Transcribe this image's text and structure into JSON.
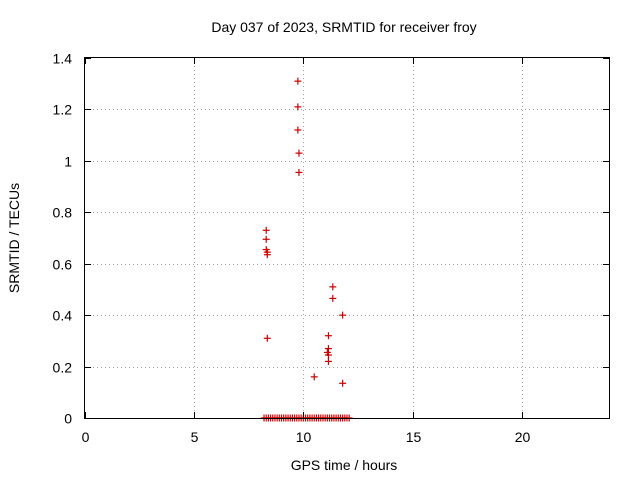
{
  "chart_data": {
    "type": "scatter",
    "title": "Day 037 of 2023, SRMTID for receiver froy",
    "xlabel": "GPS time / hours",
    "ylabel": "SRMTID / TECUs",
    "xlim": [
      0,
      24
    ],
    "ylim": [
      0,
      1.4
    ],
    "x_ticks": [
      0,
      5,
      10,
      15,
      20
    ],
    "x_tick_labels": [
      "0",
      "5",
      "10",
      "15",
      "20"
    ],
    "y_ticks": [
      0,
      0.2,
      0.4,
      0.6,
      0.8,
      1.0,
      1.2,
      1.4
    ],
    "y_tick_labels": [
      "0",
      "0.2",
      "0.4",
      "0.6",
      "0.8",
      "1",
      "1.2",
      "1.4"
    ],
    "grid": true,
    "marker": "+",
    "series": [
      {
        "name": "SRMTID",
        "color": "#cc0000",
        "points": [
          {
            "x": 9.75,
            "y": 1.31
          },
          {
            "x": 9.75,
            "y": 1.21
          },
          {
            "x": 9.75,
            "y": 1.12
          },
          {
            "x": 9.8,
            "y": 1.03
          },
          {
            "x": 9.8,
            "y": 0.955
          },
          {
            "x": 8.3,
            "y": 0.73
          },
          {
            "x": 8.3,
            "y": 0.695
          },
          {
            "x": 8.3,
            "y": 0.655
          },
          {
            "x": 8.35,
            "y": 0.645
          },
          {
            "x": 8.35,
            "y": 0.635
          },
          {
            "x": 8.35,
            "y": 0.31
          },
          {
            "x": 11.35,
            "y": 0.51
          },
          {
            "x": 11.35,
            "y": 0.465
          },
          {
            "x": 11.8,
            "y": 0.4
          },
          {
            "x": 11.15,
            "y": 0.32
          },
          {
            "x": 11.15,
            "y": 0.27
          },
          {
            "x": 11.1,
            "y": 0.255
          },
          {
            "x": 11.15,
            "y": 0.245
          },
          {
            "x": 11.15,
            "y": 0.22
          },
          {
            "x": 10.5,
            "y": 0.16
          },
          {
            "x": 11.8,
            "y": 0.135
          },
          {
            "x": 8.2,
            "y": 0
          },
          {
            "x": 8.3,
            "y": 0
          },
          {
            "x": 8.4,
            "y": 0
          },
          {
            "x": 8.5,
            "y": 0
          },
          {
            "x": 8.6,
            "y": 0
          },
          {
            "x": 8.7,
            "y": 0
          },
          {
            "x": 8.8,
            "y": 0
          },
          {
            "x": 8.9,
            "y": 0
          },
          {
            "x": 9.0,
            "y": 0
          },
          {
            "x": 9.1,
            "y": 0
          },
          {
            "x": 9.2,
            "y": 0
          },
          {
            "x": 9.3,
            "y": 0
          },
          {
            "x": 9.4,
            "y": 0
          },
          {
            "x": 9.5,
            "y": 0
          },
          {
            "x": 9.6,
            "y": 0
          },
          {
            "x": 9.7,
            "y": 0
          },
          {
            "x": 9.8,
            "y": 0
          },
          {
            "x": 9.9,
            "y": 0
          },
          {
            "x": 10.0,
            "y": 0
          },
          {
            "x": 10.1,
            "y": 0
          },
          {
            "x": 10.2,
            "y": 0
          },
          {
            "x": 10.3,
            "y": 0
          },
          {
            "x": 10.4,
            "y": 0
          },
          {
            "x": 10.5,
            "y": 0
          },
          {
            "x": 10.6,
            "y": 0
          },
          {
            "x": 10.7,
            "y": 0
          },
          {
            "x": 10.8,
            "y": 0
          },
          {
            "x": 10.9,
            "y": 0
          },
          {
            "x": 11.0,
            "y": 0
          },
          {
            "x": 11.1,
            "y": 0
          },
          {
            "x": 11.2,
            "y": 0
          },
          {
            "x": 11.3,
            "y": 0
          },
          {
            "x": 11.4,
            "y": 0
          },
          {
            "x": 11.5,
            "y": 0
          },
          {
            "x": 11.6,
            "y": 0
          },
          {
            "x": 11.7,
            "y": 0
          },
          {
            "x": 11.8,
            "y": 0
          },
          {
            "x": 11.9,
            "y": 0
          },
          {
            "x": 12.0,
            "y": 0
          },
          {
            "x": 12.1,
            "y": 0
          }
        ]
      }
    ]
  }
}
